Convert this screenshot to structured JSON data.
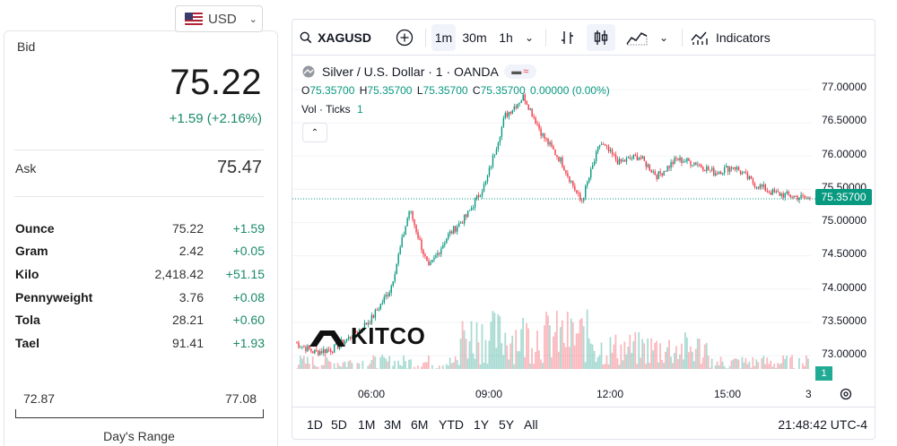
{
  "left": {
    "currency": "USD",
    "bid_label": "Bid",
    "bid_value": "75.22",
    "bid_change": "+1.59 (+2.16%)",
    "ask_label": "Ask",
    "ask_value": "75.47",
    "units": [
      {
        "name": "Ounce",
        "price": "75.22",
        "change": "+1.59"
      },
      {
        "name": "Gram",
        "price": "2.42",
        "change": "+0.05"
      },
      {
        "name": "Kilo",
        "price": "2,418.42",
        "change": "+51.15"
      },
      {
        "name": "Pennyweight",
        "price": "3.76",
        "change": "+0.08"
      },
      {
        "name": "Tola",
        "price": "28.21",
        "change": "+0.60"
      },
      {
        "name": "Tael",
        "price": "91.41",
        "change": "+1.93"
      }
    ],
    "range_low": "72.87",
    "range_high": "77.08",
    "range_label": "Day's Range"
  },
  "toolbar": {
    "symbol": "XAGUSD",
    "intervals": [
      "1m",
      "30m",
      "1h"
    ],
    "active_interval": "1m",
    "indicators_label": "Indicators"
  },
  "legend": {
    "title": "Silver / U.S. Dollar · 1 · OANDA",
    "o_label": "O",
    "o_value": "75.35700",
    "h_label": "H",
    "h_value": "75.35700",
    "l_label": "L",
    "l_value": "75.35700",
    "c_label": "C",
    "c_value": "75.35700",
    "change": "0.00000 (0.00%)",
    "vol_label": "Vol · Ticks",
    "vol_value": "1"
  },
  "chart": {
    "y_ticks": [
      "77.00000",
      "76.50000",
      "76.00000",
      "75.50000",
      "75.00000",
      "74.50000",
      "74.00000",
      "73.50000",
      "73.00000"
    ],
    "last_price": "75.35700",
    "volume_tag": "1",
    "x_ticks": [
      "06:00",
      "09:00",
      "12:00",
      "15:00",
      "3"
    ],
    "logo_text": "KITCO",
    "up_color": "#089981",
    "down_color": "#f23645"
  },
  "bottom": {
    "ranges": [
      "1D",
      "5D",
      "1M",
      "3M",
      "6M",
      "YTD",
      "1Y",
      "5Y",
      "All"
    ],
    "clock": "21:48:42 UTC-4"
  },
  "chart_data": {
    "type": "line",
    "title": "Silver / U.S. Dollar · 1 · OANDA",
    "xlabel": "",
    "ylabel": "",
    "ylim": [
      72.75,
      77.25
    ],
    "x": [
      "04:00",
      "05:00",
      "06:00",
      "07:00",
      "08:00",
      "08:30",
      "08:45",
      "09:00",
      "09:15",
      "09:30",
      "09:45",
      "10:00",
      "10:15",
      "10:30",
      "10:45",
      "11:00",
      "11:30",
      "12:00",
      "12:30",
      "13:00",
      "13:30",
      "14:00",
      "14:30",
      "15:00",
      "15:30",
      "16:00",
      "16:30",
      "17:00"
    ],
    "series": [
      {
        "values": [
          73.2,
          73.05,
          73.1,
          73.3,
          73.55,
          74.0,
          75.2,
          74.3,
          74.8,
          75.1,
          75.6,
          76.6,
          76.9,
          76.3,
          75.9,
          75.3,
          76.2,
          75.9,
          76.0,
          75.7,
          75.95,
          75.9,
          75.75,
          75.85,
          75.6,
          75.45,
          75.4,
          75.357
        ]
      }
    ]
  }
}
